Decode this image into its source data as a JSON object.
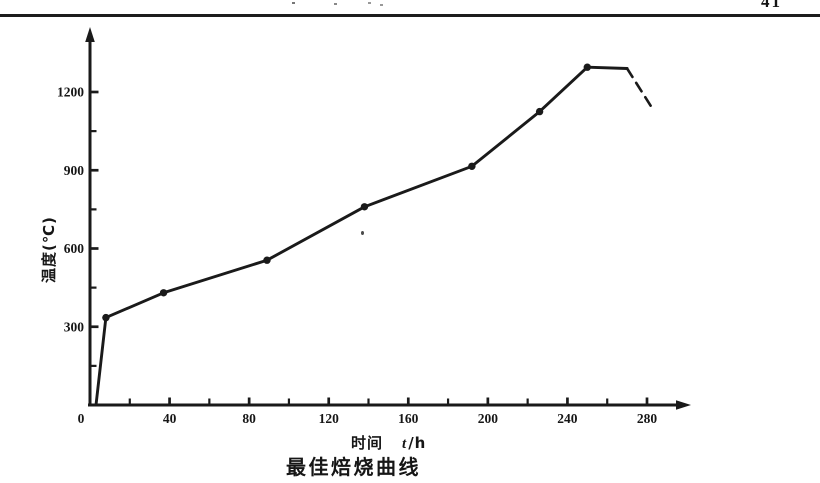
{
  "page": {
    "top_right_text": "41",
    "background_color": "#ffffff",
    "ink_color": "#1a1a1a"
  },
  "labels": {
    "xlabel_cn": "时间",
    "xlabel_var": "t",
    "xlabel_unit": "/h"
  },
  "chart_data": {
    "type": "line",
    "title": "最佳焙烧曲线",
    "xlabel": "时间 t/h",
    "ylabel": "温度(℃)",
    "xlim": [
      0,
      300
    ],
    "ylim": [
      0,
      1450
    ],
    "grid": false,
    "legend": "none",
    "x_major_ticks": [
      0,
      40,
      80,
      120,
      160,
      200,
      240,
      280
    ],
    "x_minor_ticks": [
      20,
      60,
      100,
      140,
      180,
      220,
      260
    ],
    "y_major_ticks": [
      300,
      600,
      900,
      1200
    ],
    "y_minor_ticks": [
      150,
      450,
      750,
      1050
    ],
    "series": [
      {
        "name": "optimal-roasting-curve",
        "style": "solid",
        "points": [
          [
            3,
            0
          ],
          [
            8,
            335
          ],
          [
            37,
            430
          ],
          [
            89,
            555
          ],
          [
            138,
            760
          ],
          [
            192,
            915
          ],
          [
            226,
            1125
          ],
          [
            250,
            1295
          ],
          [
            270,
            1290
          ]
        ],
        "marker_points": [
          [
            8,
            335
          ],
          [
            37,
            430
          ],
          [
            89,
            555
          ],
          [
            138,
            760
          ],
          [
            192,
            915
          ],
          [
            226,
            1125
          ],
          [
            250,
            1295
          ]
        ]
      },
      {
        "name": "cooling-projection",
        "style": "dashed",
        "points": [
          [
            270,
            1290
          ],
          [
            282,
            1145
          ]
        ]
      }
    ]
  }
}
